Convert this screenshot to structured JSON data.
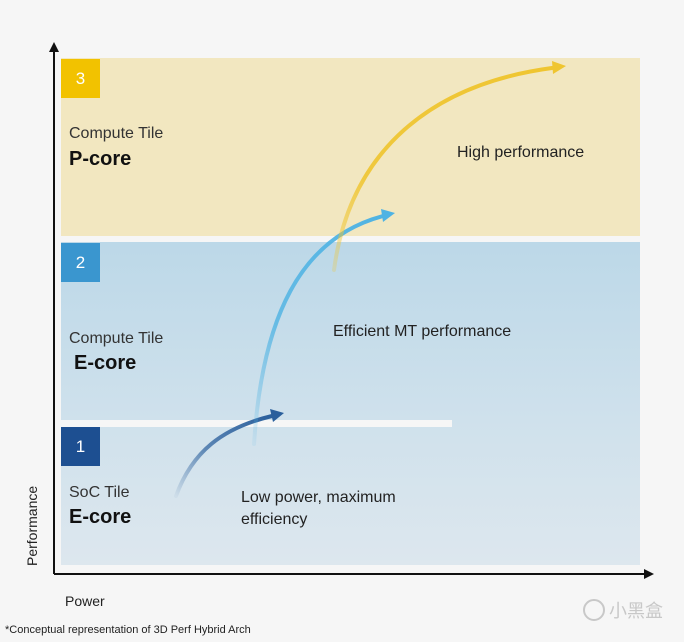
{
  "tiles": [
    {
      "number": "3",
      "tile_label": "Compute Tile",
      "core_label": "P-core",
      "note": "High performance"
    },
    {
      "number": "2",
      "tile_label": "Compute Tile",
      "core_label": "E-core",
      "note": "Efficient MT performance"
    },
    {
      "number": "1",
      "tile_label": "SoC Tile",
      "core_label": "E-core",
      "note": "Low power, maximum efficiency"
    }
  ],
  "axes": {
    "x_label": "Power",
    "y_label": "Performance"
  },
  "footnote": "*Conceptual representation of 3D Perf Hybrid Arch",
  "watermark": "小黑盒",
  "colors": {
    "p_core_tile": "#f2e7c0",
    "e_core_tile": "#c3dbe8",
    "soc_tile": "#dde6ee",
    "badge_3": "#f2c200",
    "badge_2": "#3a96cf",
    "badge_1": "#1d4f91",
    "arrow_yellow": "#efc530",
    "arrow_light_blue": "#4fb3e3",
    "arrow_dark_blue": "#2a5f9c"
  }
}
